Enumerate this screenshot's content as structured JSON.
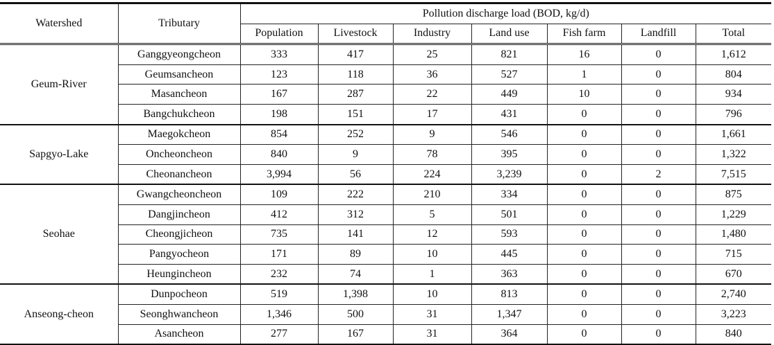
{
  "table": {
    "headers": {
      "watershed": "Watershed",
      "tributary": "Tributary",
      "group": "Pollution discharge load (BOD, kg/d)",
      "columns": [
        "Population",
        "Livestock",
        "Industry",
        "Land use",
        "Fish farm",
        "Landfill",
        "Total"
      ]
    },
    "groups": [
      {
        "watershed": "Geum-River",
        "rows": [
          [
            "Ganggyeongcheon",
            "333",
            "417",
            "25",
            "821",
            "16",
            "0",
            "1,612"
          ],
          [
            "Geumsancheon",
            "123",
            "118",
            "36",
            "527",
            "1",
            "0",
            "804"
          ],
          [
            "Masancheon",
            "167",
            "287",
            "22",
            "449",
            "10",
            "0",
            "934"
          ],
          [
            "Bangchukcheon",
            "198",
            "151",
            "17",
            "431",
            "0",
            "0",
            "796"
          ]
        ]
      },
      {
        "watershed": "Sapgyo-Lake",
        "rows": [
          [
            "Maegokcheon",
            "854",
            "252",
            "9",
            "546",
            "0",
            "0",
            "1,661"
          ],
          [
            "Oncheoncheon",
            "840",
            "9",
            "78",
            "395",
            "0",
            "0",
            "1,322"
          ],
          [
            "Cheonancheon",
            "3,994",
            "56",
            "224",
            "3,239",
            "0",
            "2",
            "7,515"
          ]
        ]
      },
      {
        "watershed": "Seohae",
        "rows": [
          [
            "Gwangcheoncheon",
            "109",
            "222",
            "210",
            "334",
            "0",
            "0",
            "875"
          ],
          [
            "Dangjincheon",
            "412",
            "312",
            "5",
            "501",
            "0",
            "0",
            "1,229"
          ],
          [
            "Cheongjicheon",
            "735",
            "141",
            "12",
            "593",
            "0",
            "0",
            "1,480"
          ],
          [
            "Pangyocheon",
            "171",
            "89",
            "10",
            "445",
            "0",
            "0",
            "715"
          ],
          [
            "Heungincheon",
            "232",
            "74",
            "1",
            "363",
            "0",
            "0",
            "670"
          ]
        ]
      },
      {
        "watershed": "Anseong-cheon",
        "rows": [
          [
            "Dunpocheon",
            "519",
            "1,398",
            "10",
            "813",
            "0",
            "0",
            "2,740"
          ],
          [
            "Seonghwancheon",
            "1,346",
            "500",
            "31",
            "1,347",
            "0",
            "0",
            "3,223"
          ],
          [
            "Asancheon",
            "277",
            "167",
            "31",
            "364",
            "0",
            "0",
            "840"
          ]
        ]
      }
    ]
  }
}
